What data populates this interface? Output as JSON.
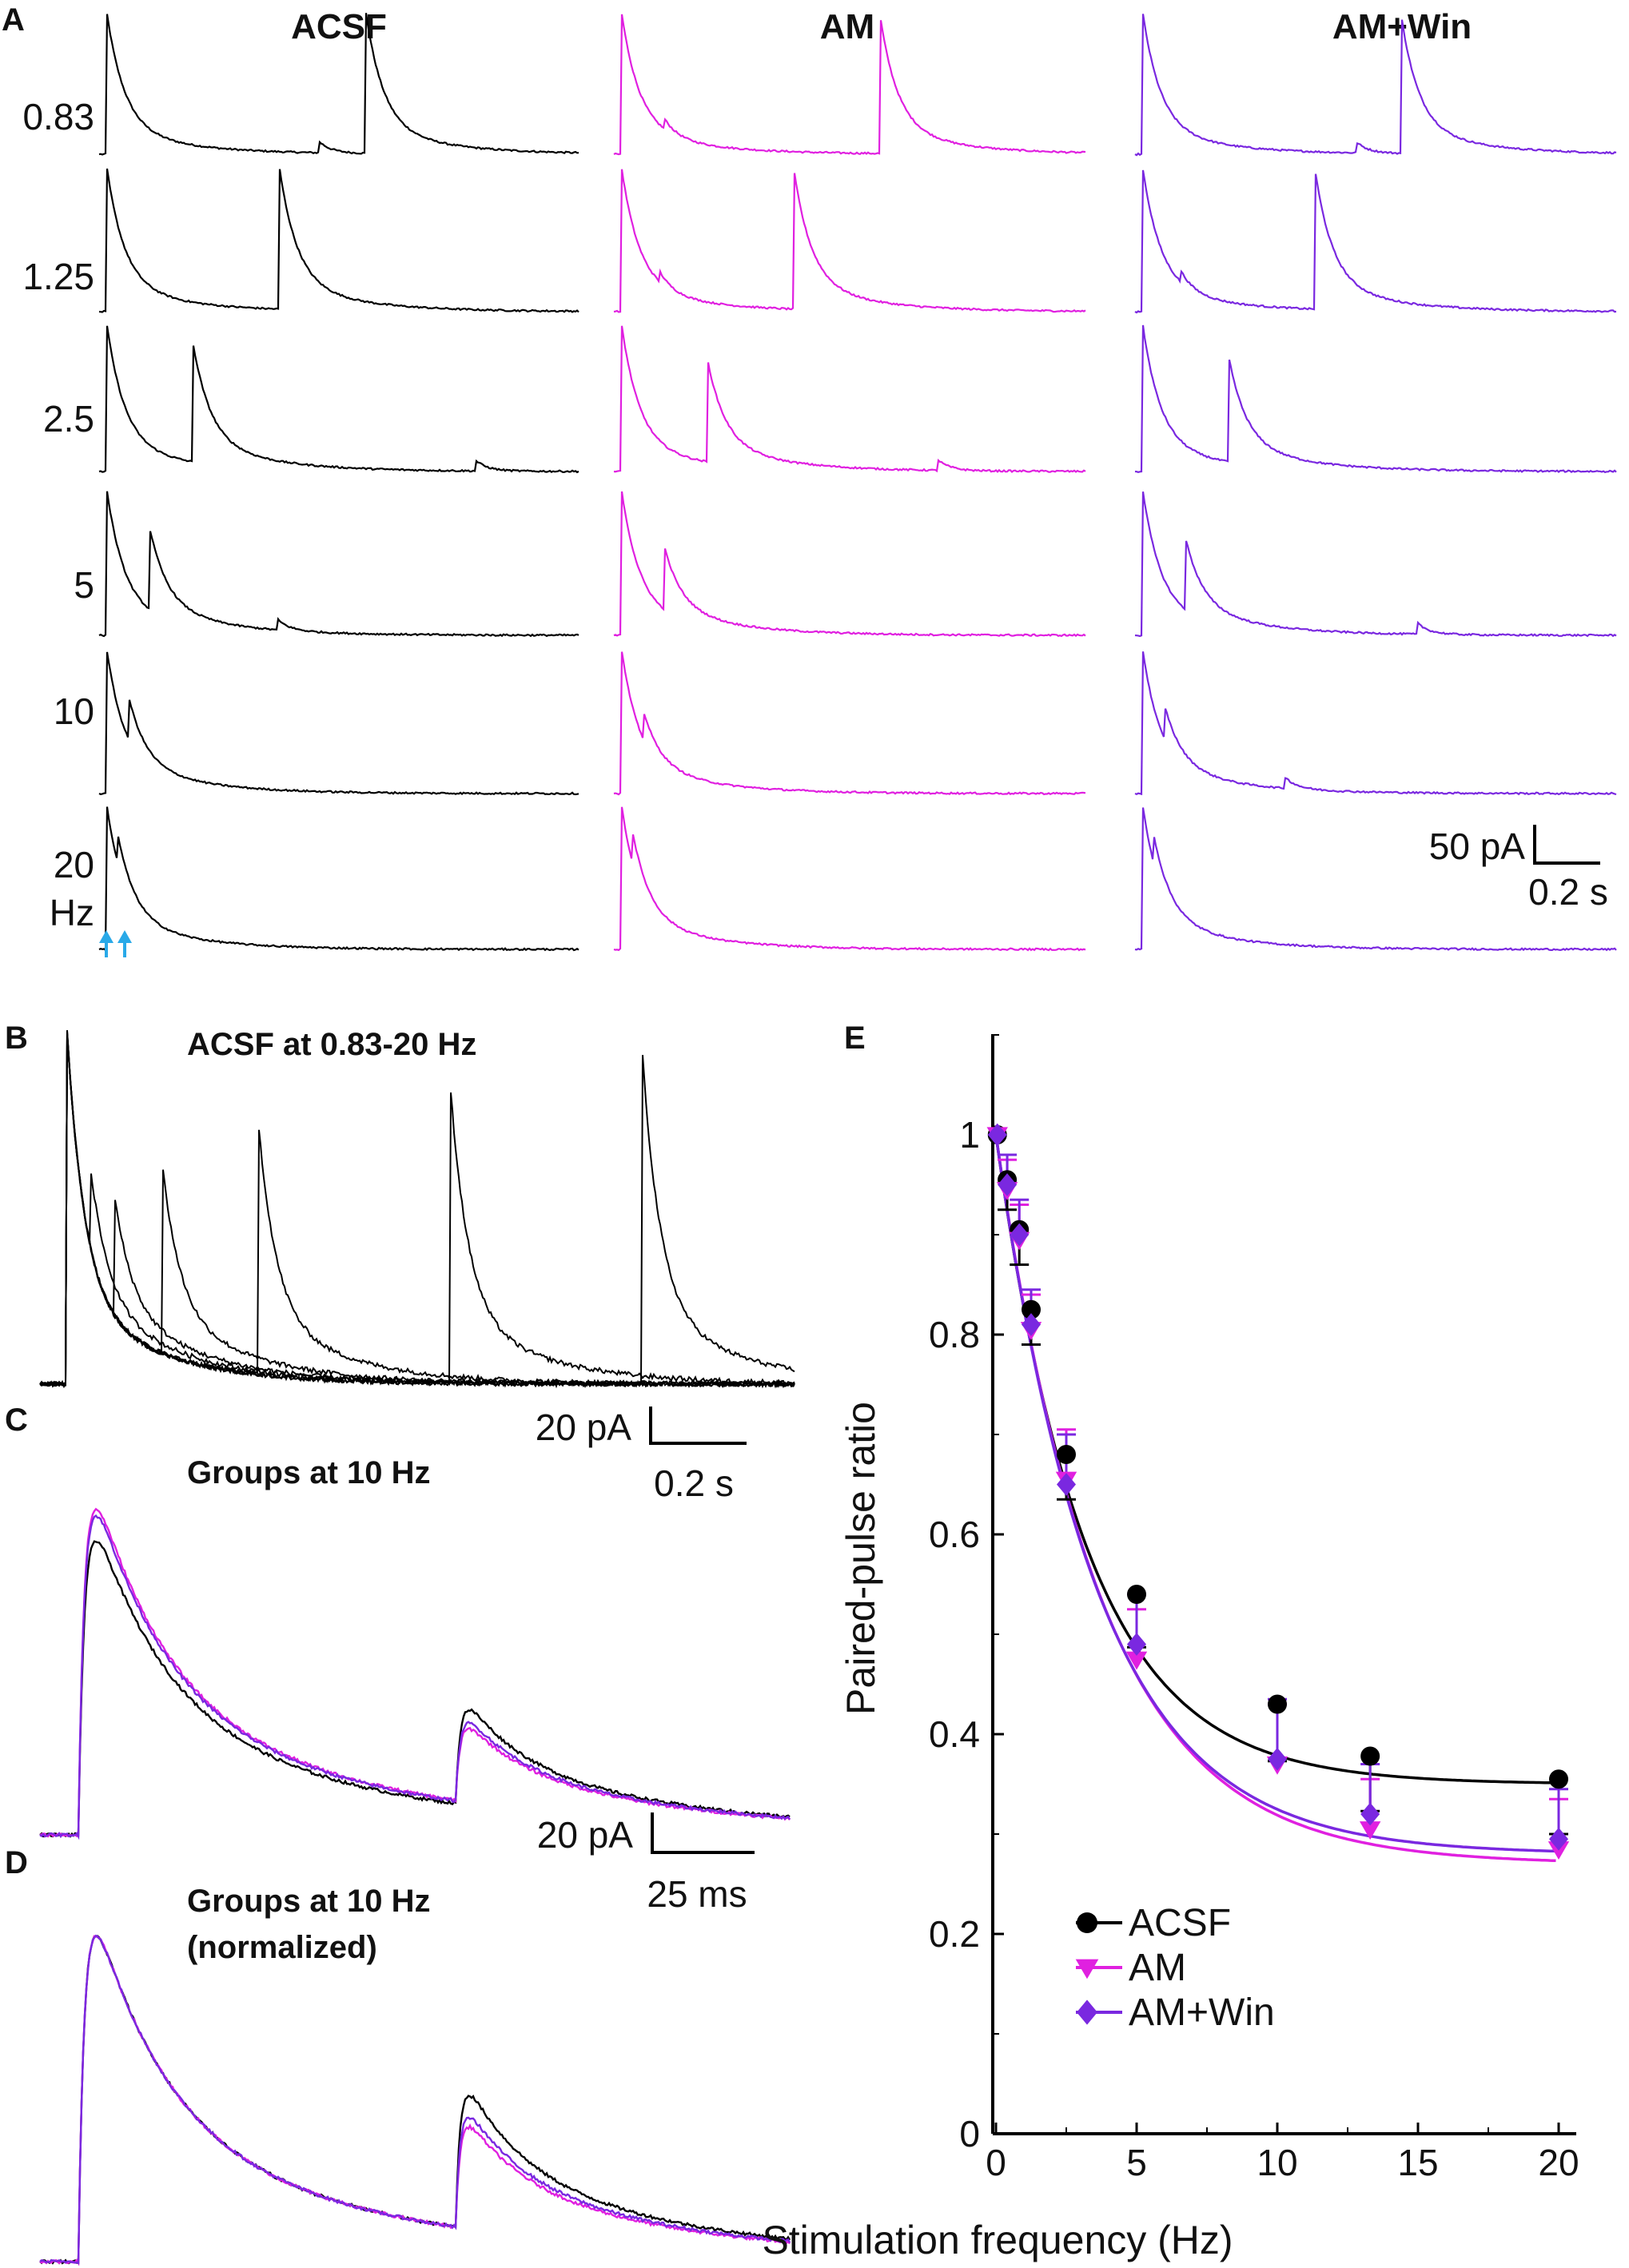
{
  "colors": {
    "acsf": "#000000",
    "am": "#e020e0",
    "am_win": "#7a28e0",
    "stim_arrow": "#29a9e8"
  },
  "panel_a": {
    "label": "A",
    "columns": [
      {
        "key": "acsf",
        "title": "ACSF"
      },
      {
        "key": "am",
        "title": "AM"
      },
      {
        "key": "am_win",
        "title": "AM+Win"
      }
    ],
    "rows": [
      {
        "label": "0.83",
        "freq_hz": 0.83,
        "interval_s": 1.2
      },
      {
        "label": "1.25",
        "freq_hz": 1.25,
        "interval_s": 0.8
      },
      {
        "label": "2.5",
        "freq_hz": 2.5,
        "interval_s": 0.4
      },
      {
        "label": "5",
        "freq_hz": 5,
        "interval_s": 0.2
      },
      {
        "label": "10",
        "freq_hz": 10,
        "interval_s": 0.1
      },
      {
        "label": "20",
        "freq_hz": 20,
        "interval_s": 0.05
      }
    ],
    "last_row_unit": "Hz",
    "scalebar": {
      "amp": "50 pA",
      "time": "0.2 s"
    }
  },
  "panel_b": {
    "label": "B",
    "title": "ACSF at 0.83-20 Hz",
    "scalebar": {
      "amp": "20 pA",
      "time": "0.2 s"
    }
  },
  "panel_c": {
    "label": "C",
    "title": "Groups at 10 Hz",
    "scalebar": {
      "amp": "20 pA",
      "time": "25 ms"
    }
  },
  "panel_d": {
    "label": "D",
    "title_line1": "Groups at 10 Hz",
    "title_line2": "(normalized)"
  },
  "panel_e": {
    "label": "E"
  },
  "chart_data": {
    "type": "scatter",
    "title": "",
    "xlabel": "Stimulation frequency (Hz)",
    "ylabel": "Paired-pulse ratio",
    "xlim": [
      0,
      20.5
    ],
    "ylim": [
      0,
      1.1
    ],
    "xticks": [
      0,
      5,
      10,
      15,
      20
    ],
    "yticks": [
      0,
      0.2,
      0.4,
      0.6,
      0.8,
      1
    ],
    "ytick_labels": [
      "0",
      "0.2",
      "0.4",
      "0.6",
      "0.8",
      "1"
    ],
    "x": [
      0.05,
      0.4,
      0.83,
      1.25,
      2.5,
      5,
      10,
      13.3,
      20
    ],
    "series": [
      {
        "name": "ACSF",
        "marker": "circle",
        "color": "#000000",
        "values": [
          1.0,
          0.955,
          0.905,
          0.825,
          0.68,
          0.54,
          0.43,
          0.378,
          0.355
        ],
        "errors": [
          0.0,
          0.03,
          0.035,
          0.035,
          0.045,
          0.053,
          0.057,
          0.055,
          0.055
        ],
        "fit": {
          "y0": 0.35,
          "A": 0.65,
          "tau": 3.2
        }
      },
      {
        "name": "AM",
        "marker": "triangle-down",
        "color": "#e020e0",
        "values": [
          1.0,
          0.945,
          0.895,
          0.805,
          0.655,
          0.475,
          0.37,
          0.305,
          0.285
        ],
        "errors": [
          0.0,
          0.03,
          0.035,
          0.035,
          0.05,
          0.05,
          0.06,
          0.05,
          0.05
        ],
        "fit": {
          "y0": 0.27,
          "A": 0.73,
          "tau": 3.7
        }
      },
      {
        "name": "AM+Win",
        "marker": "diamond",
        "color": "#7a28e0",
        "values": [
          1.0,
          0.95,
          0.9,
          0.81,
          0.65,
          0.49,
          0.375,
          0.32,
          0.295
        ],
        "errors": [
          0.0,
          0.03,
          0.035,
          0.035,
          0.05,
          0.05,
          0.06,
          0.05,
          0.05
        ],
        "fit": {
          "y0": 0.28,
          "A": 0.72,
          "tau": 3.6
        }
      }
    ],
    "legend_position": "bottom-left"
  }
}
